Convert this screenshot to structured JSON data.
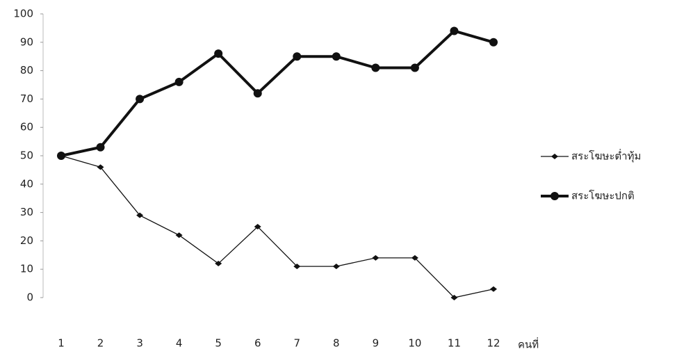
{
  "chart_data": {
    "type": "line",
    "x_label": "คนที่",
    "categories": [
      "1",
      "2",
      "3",
      "4",
      "5",
      "6",
      "7",
      "8",
      "9",
      "10",
      "11",
      "12"
    ],
    "series": [
      {
        "name": "สระโฆษะต่ำทุ้ม",
        "color": "#111111",
        "values": [
          50,
          46,
          29,
          22,
          12,
          25,
          11,
          11,
          14,
          14,
          0,
          3
        ]
      },
      {
        "name": "สระโฆษะปกติ",
        "color": "#111111",
        "values": [
          50,
          53,
          70,
          76,
          86,
          72,
          85,
          85,
          81,
          81,
          94,
          90
        ]
      }
    ],
    "ylim": [
      0,
      100
    ],
    "yticks": [
      0,
      10,
      20,
      30,
      40,
      50,
      60,
      70,
      80,
      90,
      100
    ],
    "legend": "right"
  }
}
